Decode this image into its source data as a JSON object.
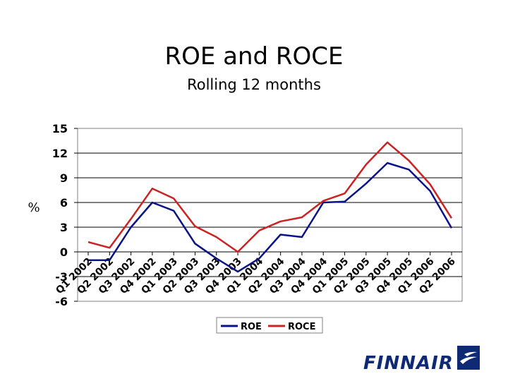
{
  "slide": {
    "title": "ROE and ROCE",
    "subtitle": "Rolling 12 months",
    "brand": "FINNAIR"
  },
  "colors": {
    "roe": "#0a128a",
    "roce": "#cc2222",
    "brand": "#0f2a75"
  },
  "chart_data": {
    "type": "line",
    "title": "",
    "ylabel": "%",
    "xlabel": "",
    "ylim": [
      -6,
      15
    ],
    "yticks": [
      15,
      12,
      9,
      6,
      3,
      0,
      -3,
      -6
    ],
    "grid": true,
    "legend_position": "bottom",
    "categories": [
      "Q1 2002",
      "Q2 2002",
      "Q3 2002",
      "Q4 2002",
      "Q1 2003",
      "Q2 2003",
      "Q3 2003",
      "Q4 2003",
      "Q1 2004",
      "Q2 2004",
      "Q3 2004",
      "Q4 2004",
      "Q1 2005",
      "Q2 2005",
      "Q3 2005",
      "Q4 2005",
      "Q1 2006",
      "Q2 2006"
    ],
    "series": [
      {
        "name": "ROE",
        "values": [
          -1,
          -1,
          3,
          6,
          5,
          1,
          -0.8,
          -2.4,
          -0.8,
          2.1,
          1.8,
          6,
          6.1,
          8.3,
          10.8,
          10,
          7.4,
          2.9
        ]
      },
      {
        "name": "ROCE",
        "values": [
          1.2,
          0.5,
          4,
          7.7,
          6.5,
          3.1,
          1.8,
          0,
          2.6,
          3.7,
          4.2,
          6.2,
          7.1,
          10.6,
          13.3,
          11.1,
          8.2,
          4.1
        ]
      }
    ]
  }
}
